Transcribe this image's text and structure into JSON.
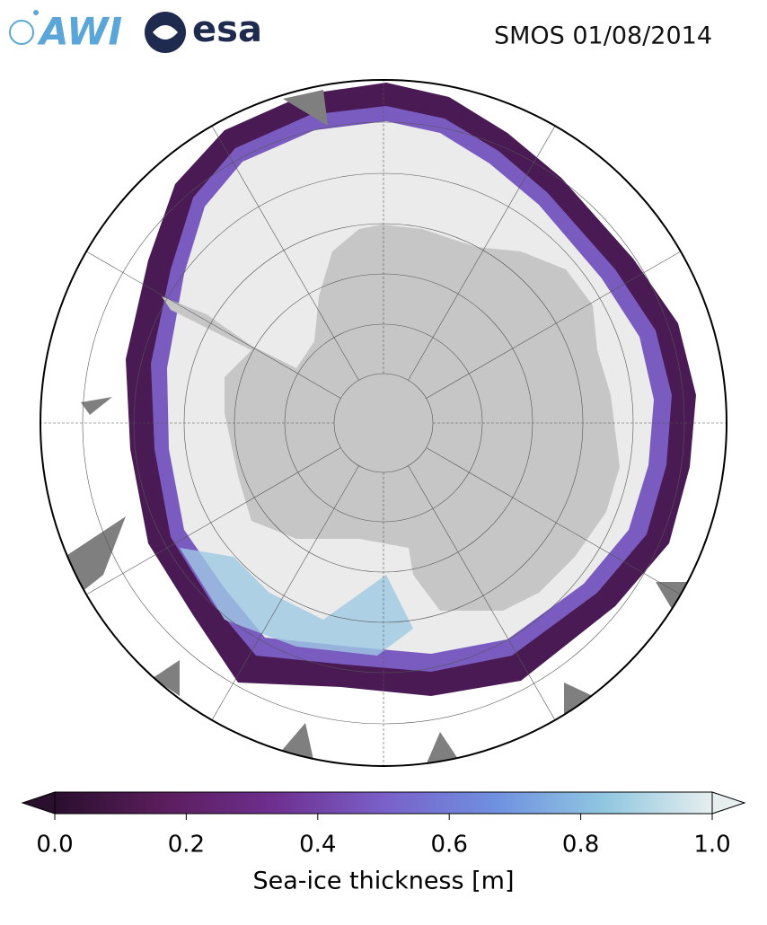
{
  "header": {
    "logos": [
      "AWI",
      "esa"
    ],
    "title": "SMOS 01/08/2014"
  },
  "map": {
    "colorbar": {
      "label": "Sea-ice thickness [m]",
      "range": [
        0,
        1
      ],
      "ticks": [
        {
          "value": 0,
          "label": "0.0"
        },
        {
          "value": 0.2,
          "label": "0.2"
        },
        {
          "value": 0.4,
          "label": "0.4"
        },
        {
          "value": 0.6,
          "label": "0.6"
        },
        {
          "value": 0.8,
          "label": "0.8"
        },
        {
          "value": 1,
          "label": "1.0"
        }
      ],
      "colors": [
        "#2a0f2e",
        "#5b1d5d",
        "#6e2f8f",
        "#7a60c8",
        "#6f8fe0",
        "#8fc6e0",
        "#e6eeee"
      ]
    }
  }
}
